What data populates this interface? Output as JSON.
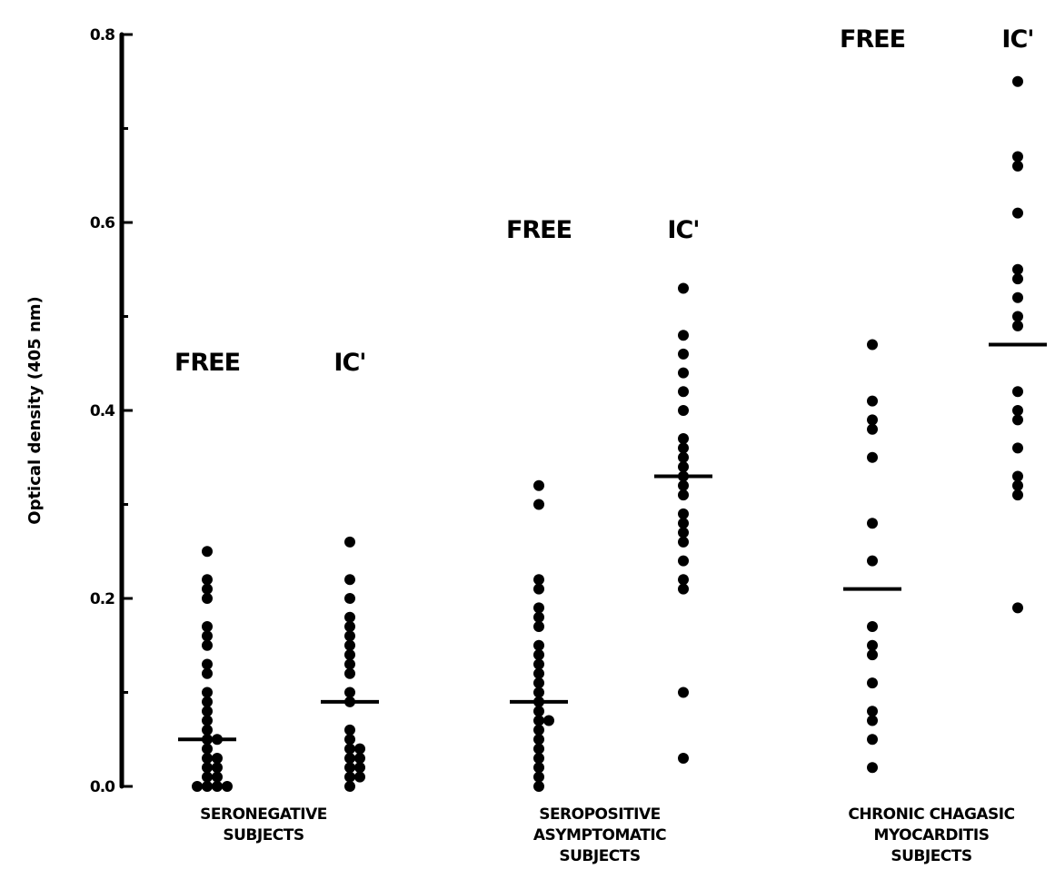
{
  "chart_data": {
    "type": "scatter",
    "title": "",
    "ylabel": "Optical density (405 nm)",
    "ylim": [
      0.0,
      0.8
    ],
    "yticks": [
      "0.0",
      "0.2",
      "0.4",
      "0.6",
      "0.8"
    ],
    "grid": false,
    "legend": "none",
    "groups": [
      {
        "label_lines": [
          "SERONEGATIVE",
          "SUBJECTS"
        ],
        "columns": [
          {
            "name": "FREE",
            "mean": 0.05,
            "values": [
              0.25,
              0.22,
              0.21,
              0.2,
              0.17,
              0.16,
              0.15,
              0.13,
              0.12,
              0.1,
              0.09,
              0.08,
              0.07,
              0.06,
              0.05,
              0.05,
              0.04,
              0.03,
              0.03,
              0.02,
              0.02,
              0.01,
              0.01,
              0.0,
              0.0,
              0.0,
              0.0
            ]
          },
          {
            "name": "IC'",
            "mean": 0.09,
            "values": [
              0.26,
              0.22,
              0.2,
              0.18,
              0.17,
              0.16,
              0.15,
              0.14,
              0.13,
              0.12,
              0.1,
              0.09,
              0.06,
              0.05,
              0.04,
              0.04,
              0.03,
              0.03,
              0.02,
              0.02,
              0.01,
              0.01,
              0.0
            ]
          }
        ]
      },
      {
        "label_lines": [
          "SEROPOSITIVE",
          "ASYMPTOMATIC",
          "SUBJECTS"
        ],
        "columns": [
          {
            "name": "FREE",
            "mean": 0.09,
            "values": [
              0.32,
              0.3,
              0.22,
              0.21,
              0.19,
              0.18,
              0.17,
              0.15,
              0.14,
              0.13,
              0.12,
              0.11,
              0.1,
              0.09,
              0.08,
              0.07,
              0.07,
              0.06,
              0.05,
              0.04,
              0.03,
              0.02,
              0.01,
              0.0
            ]
          },
          {
            "name": "IC'",
            "mean": 0.33,
            "values": [
              0.53,
              0.48,
              0.46,
              0.44,
              0.42,
              0.4,
              0.37,
              0.36,
              0.35,
              0.34,
              0.33,
              0.32,
              0.31,
              0.29,
              0.28,
              0.27,
              0.26,
              0.24,
              0.22,
              0.21,
              0.1,
              0.03
            ]
          }
        ]
      },
      {
        "label_lines": [
          "CHRONIC CHAGASIC",
          "MYOCARDITIS",
          "SUBJECTS"
        ],
        "columns": [
          {
            "name": "FREE",
            "mean": 0.21,
            "values": [
              0.47,
              0.41,
              0.39,
              0.38,
              0.35,
              0.28,
              0.24,
              0.17,
              0.15,
              0.14,
              0.11,
              0.08,
              0.07,
              0.05,
              0.02
            ]
          },
          {
            "name": "IC'",
            "mean": 0.47,
            "values": [
              0.75,
              0.67,
              0.66,
              0.61,
              0.55,
              0.54,
              0.52,
              0.5,
              0.49,
              0.42,
              0.4,
              0.39,
              0.36,
              0.33,
              0.32,
              0.31,
              0.19
            ]
          }
        ]
      }
    ]
  }
}
